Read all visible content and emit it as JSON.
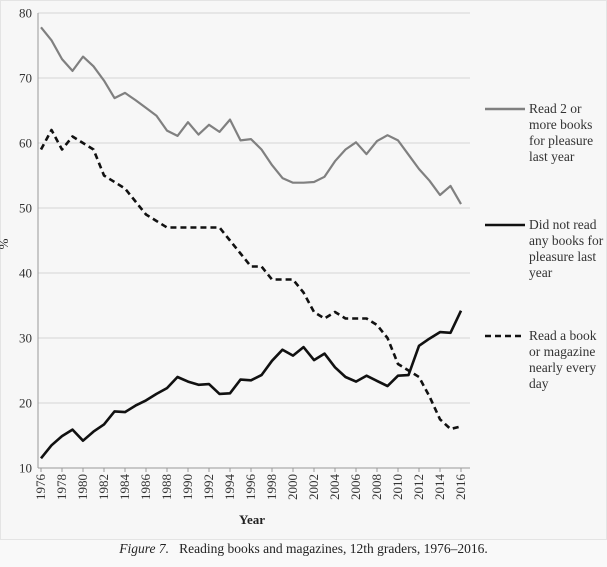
{
  "chart_data": {
    "type": "line",
    "title": "",
    "xlabel": "Year",
    "ylabel": "%",
    "xlim": [
      1976,
      2016
    ],
    "ylim": [
      10,
      80
    ],
    "yticks": [
      10,
      20,
      30,
      40,
      50,
      60,
      70,
      80
    ],
    "xticks": [
      "1976",
      "1978",
      "1980",
      "1982",
      "1984",
      "1986",
      "1988",
      "1990",
      "1992",
      "1994",
      "1996",
      "1998",
      "2000",
      "2002",
      "2004",
      "2006",
      "2008",
      "2010",
      "2012",
      "2014",
      "2016"
    ],
    "grid": "horizontal",
    "legend_position": "right",
    "x": [
      1976,
      1977,
      1978,
      1979,
      1980,
      1981,
      1982,
      1983,
      1984,
      1985,
      1986,
      1987,
      1988,
      1989,
      1990,
      1991,
      1992,
      1993,
      1994,
      1995,
      1996,
      1997,
      1998,
      1999,
      2000,
      2001,
      2002,
      2003,
      2004,
      2005,
      2006,
      2007,
      2008,
      2009,
      2010,
      2011,
      2012,
      2013,
      2014,
      2015,
      2016
    ],
    "series": [
      {
        "name": "Read 2 or more books for pleasure last year",
        "legend_lines": [
          "Read 2 or",
          "more books",
          "for pleasure",
          "last year"
        ],
        "color": "#808080",
        "style": "solid",
        "values": [
          77.8,
          75.8,
          72.9,
          71.1,
          73.3,
          71.8,
          69.6,
          66.9,
          67.7,
          66.6,
          65.4,
          64.2,
          61.9,
          61.1,
          63.2,
          61.3,
          62.8,
          61.7,
          63.6,
          60.4,
          60.6,
          59.0,
          56.6,
          54.6,
          53.9,
          53.9,
          54.0,
          54.8,
          57.2,
          59.0,
          60.1,
          58.3,
          60.3,
          61.2,
          60.4,
          58.2,
          56.0,
          54.2,
          52.0,
          53.4,
          50.6
        ]
      },
      {
        "name": "Did not read any books for pleasure last year",
        "legend_lines": [
          "Did not read",
          "any books for",
          "pleasure last",
          "year"
        ],
        "color": "#111111",
        "style": "solid",
        "values": [
          11.5,
          13.5,
          14.9,
          15.9,
          14.2,
          15.6,
          16.7,
          18.7,
          18.6,
          19.6,
          20.4,
          21.4,
          22.3,
          24.0,
          23.3,
          22.8,
          22.9,
          21.4,
          21.5,
          23.6,
          23.5,
          24.3,
          26.5,
          28.2,
          27.3,
          28.6,
          26.6,
          27.6,
          25.5,
          24.0,
          23.3,
          24.2,
          23.4,
          22.6,
          24.2,
          24.3,
          28.8,
          29.9,
          30.9,
          30.8,
          34.2
        ]
      },
      {
        "name": "Read a book or magazine nearly every day",
        "legend_lines": [
          "Read a book",
          "or magazine",
          "nearly every",
          "day"
        ],
        "color": "#111111",
        "style": "dashed",
        "values": [
          59.0,
          62.0,
          59.0,
          61.0,
          60.0,
          59.0,
          55.0,
          54.0,
          53.0,
          51.0,
          49.0,
          48.0,
          47.0,
          47.0,
          47.0,
          47.0,
          47.0,
          47.0,
          45.0,
          43.0,
          41.0,
          41.0,
          39.0,
          39.0,
          39.0,
          37.0,
          34.0,
          33.0,
          34.0,
          33.0,
          33.0,
          33.0,
          32.0,
          30.0,
          26.0,
          25.0,
          24.0,
          21.0,
          17.5,
          16.0,
          16.4
        ]
      }
    ]
  },
  "caption": {
    "label": "Figure 7.",
    "text": "Reading books and magazines, 12th graders, 1976–2016."
  }
}
